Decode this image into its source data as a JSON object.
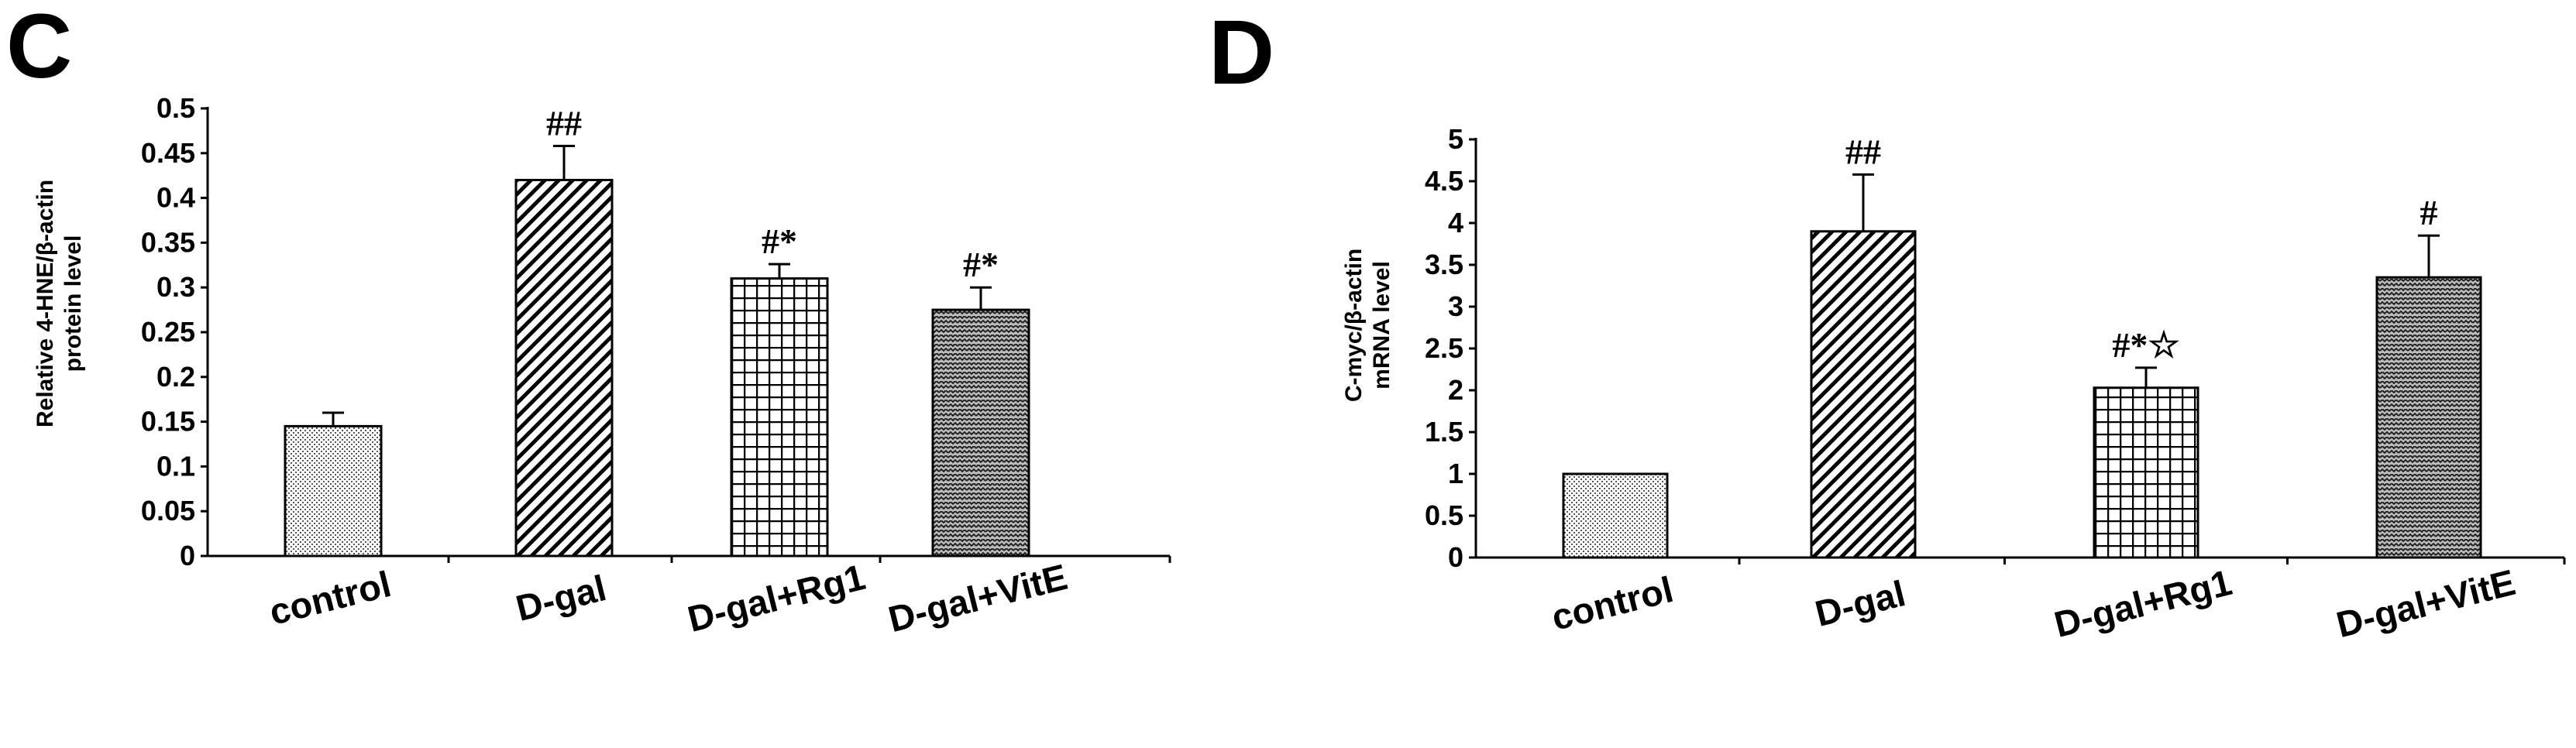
{
  "chart_data": [
    {
      "type": "bar",
      "panel": "C",
      "categories": [
        "control",
        "D-gal",
        "D-gal+Rg1",
        "D-gal+VitE"
      ],
      "values": [
        0.145,
        0.42,
        0.31,
        0.275
      ],
      "errors": [
        0.015,
        0.038,
        0.016,
        0.025
      ],
      "significance": [
        "",
        "##",
        "#*",
        "#*"
      ],
      "patterns": [
        "dots",
        "diagonal",
        "grid",
        "zigzag"
      ],
      "ylabel": [
        "Relative 4-HNE/β-actin",
        "protein level"
      ],
      "ylim": [
        0,
        0.5
      ],
      "yticks": [
        0,
        0.05,
        0.1,
        0.15,
        0.2,
        0.25,
        0.3,
        0.35,
        0.4,
        0.45,
        0.5
      ],
      "ytick_labels": [
        "0",
        "0.05",
        "0.1",
        "0.15",
        "0.2",
        "0.25",
        "0.3",
        "0.35",
        "0.4",
        "0.45",
        "0.5"
      ],
      "grid": false,
      "bar_color": "#000000"
    },
    {
      "type": "bar",
      "panel": "D",
      "categories": [
        "control",
        "D-gal",
        "D-gal+Rg1",
        "D-gal+VitE"
      ],
      "values": [
        1.0,
        3.9,
        2.03,
        3.35
      ],
      "errors": [
        0,
        0.68,
        0.24,
        0.5
      ],
      "significance": [
        "",
        "##",
        "#*☆",
        "#"
      ],
      "patterns": [
        "dots",
        "diagonal",
        "grid",
        "zigzag"
      ],
      "ylabel": [
        "C-myc/β-actin",
        "mRNA level"
      ],
      "ylim": [
        0,
        5
      ],
      "yticks": [
        0,
        0.5,
        1,
        1.5,
        2,
        2.5,
        3,
        3.5,
        4,
        4.5,
        5
      ],
      "ytick_labels": [
        "0",
        "0.5",
        "1",
        "1.5",
        "2",
        "2.5",
        "3",
        "3.5",
        "4",
        "4.5",
        "5"
      ],
      "grid": false,
      "bar_color": "#000000"
    }
  ]
}
